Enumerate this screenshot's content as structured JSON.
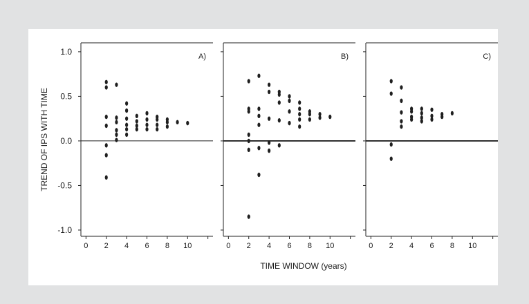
{
  "figure": {
    "ylabel": "TREND OF IPS WITH TIME",
    "xlabel": "TIME WINDOW (years)"
  },
  "chart_data": [
    {
      "type": "scatter",
      "panel_label": "A)",
      "xlim": [
        -0.5,
        12.5
      ],
      "ylim": [
        -1.07,
        1.1
      ],
      "yticks": [
        1.0,
        0.5,
        0.0,
        -0.5,
        -1.0
      ],
      "ytick_labels": [
        "1.0",
        "0.5",
        "0.0",
        "-0.5",
        "-1.0"
      ],
      "xticks": [
        0,
        2,
        4,
        6,
        8,
        10
      ],
      "xtick_labels": [
        "0",
        "2",
        "4",
        "6",
        "8",
        "10"
      ],
      "reference_line_y": 0,
      "points": [
        [
          2,
          0.66
        ],
        [
          2,
          0.6
        ],
        [
          2,
          0.27
        ],
        [
          2,
          0.17
        ],
        [
          2,
          -0.05
        ],
        [
          2,
          -0.16
        ],
        [
          2,
          -0.41
        ],
        [
          3,
          0.63
        ],
        [
          3,
          0.26
        ],
        [
          3,
          0.21
        ],
        [
          3,
          0.12
        ],
        [
          3,
          0.07
        ],
        [
          3,
          0.01
        ],
        [
          4,
          0.42
        ],
        [
          4,
          0.34
        ],
        [
          4,
          0.25
        ],
        [
          4,
          0.18
        ],
        [
          4,
          0.13
        ],
        [
          4,
          0.07
        ],
        [
          5,
          0.28
        ],
        [
          5,
          0.22
        ],
        [
          5,
          0.17
        ],
        [
          5,
          0.13
        ],
        [
          6,
          0.31
        ],
        [
          6,
          0.24
        ],
        [
          6,
          0.18
        ],
        [
          6,
          0.13
        ],
        [
          7,
          0.27
        ],
        [
          7,
          0.24
        ],
        [
          7,
          0.18
        ],
        [
          7,
          0.13
        ],
        [
          8,
          0.24
        ],
        [
          8,
          0.21
        ],
        [
          8,
          0.16
        ],
        [
          9,
          0.21
        ],
        [
          10,
          0.2
        ]
      ]
    },
    {
      "type": "scatter",
      "panel_label": "B)",
      "xlim": [
        -0.5,
        12.5
      ],
      "ylim": [
        -1.07,
        1.1
      ],
      "xticks": [
        0,
        2,
        4,
        6,
        8,
        10
      ],
      "xtick_labels": [
        "0",
        "2",
        "4",
        "6",
        "8",
        "10"
      ],
      "reference_line_y": 0,
      "points": [
        [
          2,
          0.67
        ],
        [
          2,
          0.36
        ],
        [
          2,
          0.33
        ],
        [
          2,
          0.07
        ],
        [
          2,
          0.0
        ],
        [
          2,
          -0.1
        ],
        [
          2,
          -0.85
        ],
        [
          3,
          0.73
        ],
        [
          3,
          0.36
        ],
        [
          3,
          0.28
        ],
        [
          3,
          0.18
        ],
        [
          3,
          -0.08
        ],
        [
          3,
          -0.38
        ],
        [
          4,
          0.63
        ],
        [
          4,
          0.55
        ],
        [
          4,
          0.25
        ],
        [
          4,
          -0.02
        ],
        [
          4,
          -0.11
        ],
        [
          5,
          0.55
        ],
        [
          5,
          0.52
        ],
        [
          5,
          0.43
        ],
        [
          5,
          0.23
        ],
        [
          5,
          -0.05
        ],
        [
          6,
          0.5
        ],
        [
          6,
          0.45
        ],
        [
          6,
          0.33
        ],
        [
          6,
          0.2
        ],
        [
          7,
          0.43
        ],
        [
          7,
          0.36
        ],
        [
          7,
          0.3
        ],
        [
          7,
          0.24
        ],
        [
          7,
          0.16
        ],
        [
          8,
          0.33
        ],
        [
          8,
          0.3
        ],
        [
          8,
          0.24
        ],
        [
          9,
          0.3
        ],
        [
          9,
          0.26
        ],
        [
          10,
          0.27
        ]
      ]
    },
    {
      "type": "scatter",
      "panel_label": "C)",
      "xlim": [
        -0.5,
        12.5
      ],
      "ylim": [
        -1.07,
        1.1
      ],
      "xticks": [
        0,
        2,
        4,
        6,
        8,
        10
      ],
      "xtick_labels": [
        "0",
        "2",
        "4",
        "6",
        "8",
        "10"
      ],
      "reference_line_y": 0,
      "points": [
        [
          2,
          0.67
        ],
        [
          2,
          0.53
        ],
        [
          2,
          -0.04
        ],
        [
          2,
          -0.2
        ],
        [
          3,
          0.6
        ],
        [
          3,
          0.45
        ],
        [
          3,
          0.32
        ],
        [
          3,
          0.22
        ],
        [
          3,
          0.16
        ],
        [
          4,
          0.36
        ],
        [
          4,
          0.33
        ],
        [
          4,
          0.27
        ],
        [
          4,
          0.24
        ],
        [
          5,
          0.36
        ],
        [
          5,
          0.31
        ],
        [
          5,
          0.26
        ],
        [
          5,
          0.22
        ],
        [
          6,
          0.35
        ],
        [
          6,
          0.28
        ],
        [
          6,
          0.24
        ],
        [
          7,
          0.3
        ],
        [
          7,
          0.27
        ],
        [
          8,
          0.31
        ]
      ]
    }
  ]
}
